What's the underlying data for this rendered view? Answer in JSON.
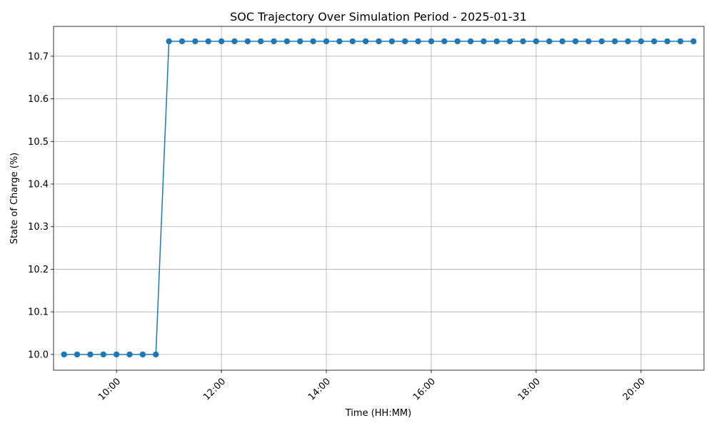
{
  "chart_data": {
    "type": "line",
    "title": "SOC Trajectory Over Simulation Period - 2025-01-31",
    "xlabel": "Time (HH:MM)",
    "ylabel": "State of Charge (%)",
    "x_ticks": [
      "10:00",
      "12:00",
      "14:00",
      "16:00",
      "18:00",
      "20:00"
    ],
    "y_ticks": [
      "10.0",
      "10.1",
      "10.2",
      "10.3",
      "10.4",
      "10.5",
      "10.6",
      "10.7"
    ],
    "xlim": [
      "08:48",
      "21:12"
    ],
    "ylim": [
      9.963,
      10.77
    ],
    "grid": true,
    "marker": "circle",
    "color": "#1f77b4",
    "series": [
      {
        "x": [
          "09:00",
          "09:15",
          "09:30",
          "09:45",
          "10:00",
          "10:15",
          "10:30",
          "10:45",
          "11:00",
          "11:15",
          "11:30",
          "11:45",
          "12:00",
          "12:15",
          "12:30",
          "12:45",
          "13:00",
          "13:15",
          "13:30",
          "13:45",
          "14:00",
          "14:15",
          "14:30",
          "14:45",
          "15:00",
          "15:15",
          "15:30",
          "15:45",
          "16:00",
          "16:15",
          "16:30",
          "16:45",
          "17:00",
          "17:15",
          "17:30",
          "17:45",
          "18:00",
          "18:15",
          "18:30",
          "18:45",
          "19:00",
          "19:15",
          "19:30",
          "19:45",
          "20:00",
          "20:15",
          "20:30",
          "20:45",
          "21:00"
        ],
        "values": [
          10.0,
          10.0,
          10.0,
          10.0,
          10.0,
          10.0,
          10.0,
          10.0,
          10.735,
          10.735,
          10.735,
          10.735,
          10.735,
          10.735,
          10.735,
          10.735,
          10.735,
          10.735,
          10.735,
          10.735,
          10.735,
          10.735,
          10.735,
          10.735,
          10.735,
          10.735,
          10.735,
          10.735,
          10.735,
          10.735,
          10.735,
          10.735,
          10.735,
          10.735,
          10.735,
          10.735,
          10.735,
          10.735,
          10.735,
          10.735,
          10.735,
          10.735,
          10.735,
          10.735,
          10.735,
          10.735,
          10.735,
          10.735,
          10.735
        ]
      }
    ]
  }
}
